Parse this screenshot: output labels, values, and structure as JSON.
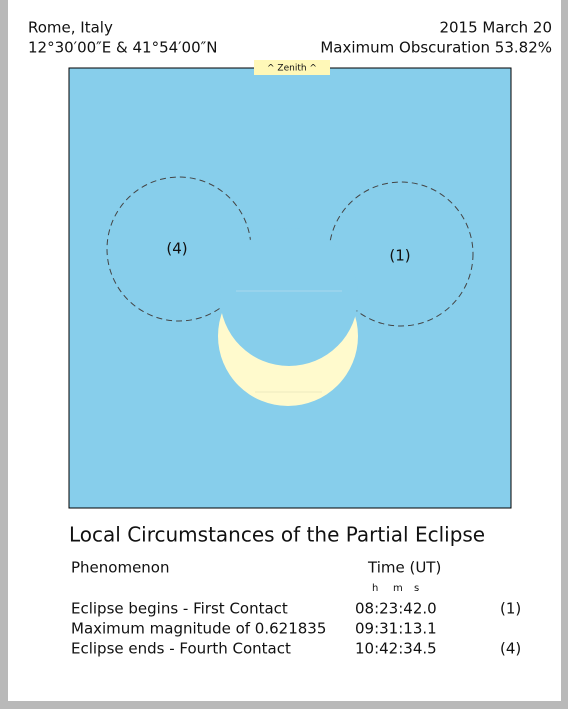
{
  "header": {
    "location": "Rome, Italy",
    "date": "2015 March 20",
    "coordinates": "12°30′00″E & 41°54′00″N",
    "obscuration": "Maximum Obscuration 53.82%"
  },
  "diagram": {
    "zenith_label": "^ Zenith ^",
    "contacts": [
      {
        "label": "(4)"
      },
      {
        "label": "(1)"
      }
    ]
  },
  "table": {
    "title": "Local Circumstances of the Partial Eclipse",
    "columns": [
      "Phenomenon",
      "Time (UT)"
    ],
    "units": [
      "h",
      "m",
      "s"
    ],
    "rows": [
      [
        "Eclipse begins - First Contact",
        "08:23:42.0",
        "(1)"
      ],
      [
        "Maximum magnitude of 0.621835",
        "09:31:13.1"
      ],
      [
        "Eclipse ends - Fourth Contact",
        "10:42:34.5",
        "(4)"
      ]
    ]
  }
}
